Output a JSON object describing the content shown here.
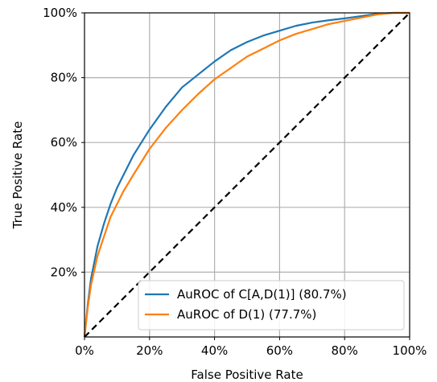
{
  "chart_data": {
    "type": "line",
    "xlabel": "False Positive Rate",
    "ylabel": "True Positive Rate",
    "xlim": [
      0,
      100
    ],
    "ylim": [
      0,
      100
    ],
    "grid": true,
    "legend_position": "bottom-right",
    "x_ticks": [
      "0%",
      "20%",
      "40%",
      "60%",
      "80%",
      "100%"
    ],
    "y_ticks": [
      "20%",
      "40%",
      "60%",
      "80%",
      "100%"
    ],
    "series": [
      {
        "name": "AuROC of C[A,D(1)] (80.7%)",
        "color": "#1f77b4",
        "x": [
          0,
          1,
          2,
          4,
          6,
          8,
          10,
          12,
          15,
          20,
          25,
          30,
          35,
          40,
          45,
          50,
          55,
          60,
          65,
          70,
          75,
          80,
          85,
          90,
          95,
          100
        ],
        "y": [
          0,
          10,
          18,
          28,
          35,
          41,
          46,
          50,
          56,
          64,
          71,
          77,
          81,
          85,
          88.5,
          91,
          93,
          94.5,
          96,
          97,
          97.7,
          98.3,
          99,
          99.7,
          100,
          100
        ]
      },
      {
        "name": "AuROC of D(1) (77.7%)",
        "color": "#ff7f0e",
        "x": [
          0,
          1,
          2,
          4,
          6,
          8,
          10,
          12,
          15,
          20,
          25,
          30,
          35,
          40,
          45,
          50,
          55,
          60,
          65,
          70,
          75,
          80,
          85,
          90,
          95,
          100
        ],
        "y": [
          0,
          9,
          16,
          25,
          31,
          37,
          41,
          45,
          50,
          58,
          64.5,
          70,
          75,
          79.5,
          83,
          86.5,
          89,
          91.5,
          93.5,
          95,
          96.5,
          97.5,
          98.5,
          99.5,
          100,
          100
        ]
      },
      {
        "name": "",
        "color": "#000000",
        "dashed": true,
        "x": [
          0,
          100
        ],
        "y": [
          0,
          100
        ]
      }
    ]
  }
}
